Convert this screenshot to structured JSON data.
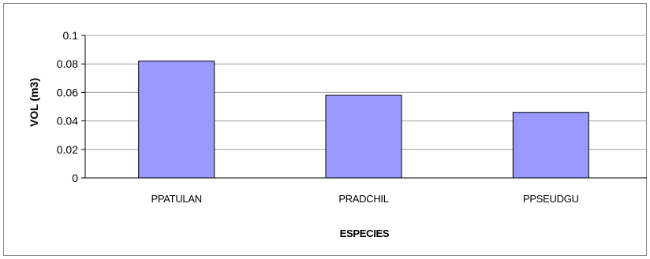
{
  "chart_data": {
    "type": "bar",
    "title": "",
    "xlabel": "ESPECIES",
    "ylabel": "VOL (m3)",
    "categories": [
      "PPATULAN",
      "PRADCHIL",
      "PPSEUDGU"
    ],
    "values": [
      0.082,
      0.058,
      0.046
    ],
    "ylim": [
      0,
      0.1
    ],
    "yticks": [
      "0",
      "0.02",
      "0.04",
      "0.06",
      "0.08",
      "0.1"
    ],
    "grid": true,
    "legend": "none",
    "bar_color": "#9999ff",
    "bar_edge_color": "#000000",
    "grid_color": "#a0a0a0",
    "frame_color": "#888888"
  }
}
